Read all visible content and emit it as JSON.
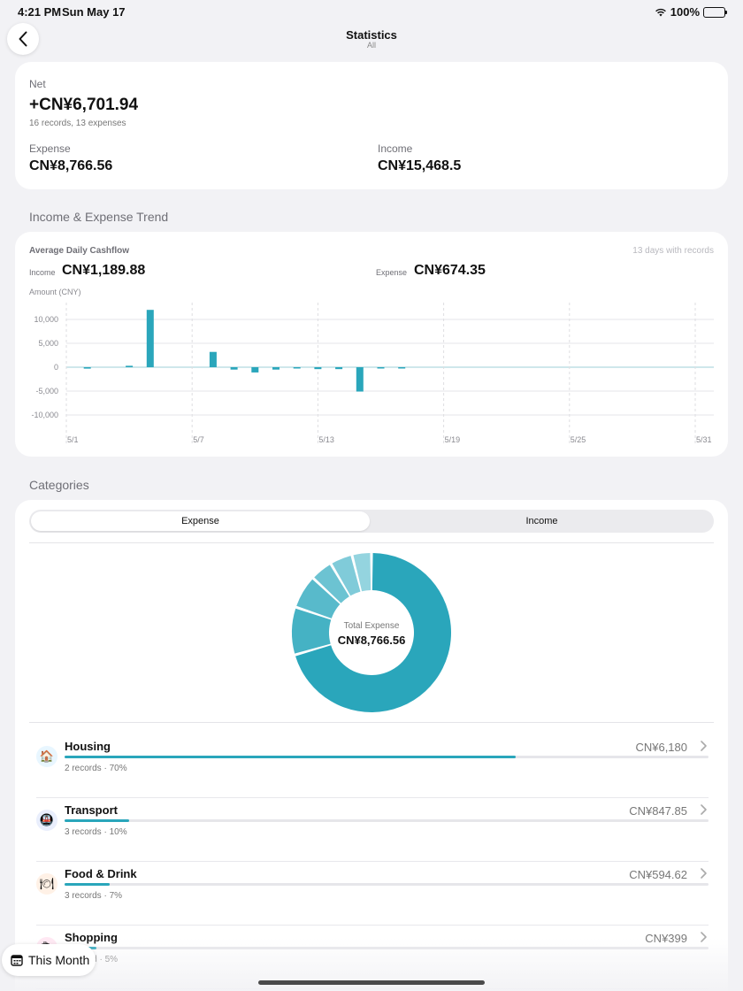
{
  "status": {
    "time": "4:21 PM",
    "date": "Sun May 17",
    "battery": "100%"
  },
  "nav": {
    "title": "Statistics",
    "subtitle": "All"
  },
  "summary": {
    "net_label": "Net",
    "net_value": "+CN¥6,701.94",
    "records": "16 records, 13 expenses",
    "expense_label": "Expense",
    "expense_value": "CN¥8,766.56",
    "income_label": "Income",
    "income_value": "CN¥15,468.5"
  },
  "trend": {
    "section_title": "Income & Expense Trend",
    "avg_label": "Average Daily Cashflow",
    "days_label": "13 days with records",
    "income_label": "Income",
    "income_value": "CN¥1,189.88",
    "expense_label": "Expense",
    "expense_value": "CN¥674.35",
    "axis_unit": "Amount (CNY)"
  },
  "chart_data": {
    "type": "bar",
    "ylabel": "Amount (CNY)",
    "ylim": [
      -12500,
      12500
    ],
    "yticks": [
      10000,
      5000,
      0,
      -5000,
      -10000
    ],
    "ytick_labels": [
      "10,000",
      "5,000",
      "0",
      "-5,000",
      "-10,000"
    ],
    "xticks": [
      "5/1",
      "5/7",
      "5/13",
      "5/19",
      "5/25",
      "5/31"
    ],
    "x": [
      "5/2",
      "5/3",
      "5/4",
      "5/5",
      "5/6",
      "5/7",
      "5/8",
      "5/9",
      "5/10",
      "5/11",
      "5/12",
      "5/13",
      "5/14",
      "5/15",
      "5/16",
      "5/17"
    ],
    "values": [
      -300,
      0,
      300,
      12000,
      0,
      0,
      3200,
      -500,
      -1100,
      -500,
      -200,
      -400,
      -400,
      -5100,
      -200,
      -100
    ],
    "color": "#2aa6bb",
    "grid": true
  },
  "categories": {
    "section_title": "Categories",
    "tab_expense": "Expense",
    "tab_income": "Income",
    "total_label": "Total Expense",
    "total_value": "CN¥8,766.56",
    "donut_colors": [
      "#2aa6bb",
      "#45b2c4",
      "#58bacb",
      "#6cc3d2",
      "#80cbd9",
      "#94d4df"
    ],
    "donut_values": [
      6180,
      847.85,
      594.62,
      399,
      400,
      345.09
    ],
    "items": [
      {
        "name": "Housing",
        "amount": "CN¥6,180",
        "sub": "2 records · 70%",
        "fraction": 0.7,
        "icon": "house-icon",
        "glyph": "🏠",
        "bg": "#e8f6ff"
      },
      {
        "name": "Transport",
        "amount": "CN¥847.85",
        "sub": "3 records · 10%",
        "fraction": 0.1,
        "icon": "train-icon",
        "glyph": "🚇",
        "bg": "#e9eefc"
      },
      {
        "name": "Food & Drink",
        "amount": "CN¥594.62",
        "sub": "3 records · 7%",
        "fraction": 0.07,
        "icon": "plate-icon",
        "glyph": "🍽",
        "bg": "#fff1e6"
      },
      {
        "name": "Shopping",
        "amount": "CN¥399",
        "sub": "1 record · 5%",
        "fraction": 0.05,
        "icon": "shopping-icon",
        "glyph": "🛍",
        "bg": "#ffe8f3"
      }
    ]
  },
  "bottom": {
    "month_label": "This Month"
  }
}
